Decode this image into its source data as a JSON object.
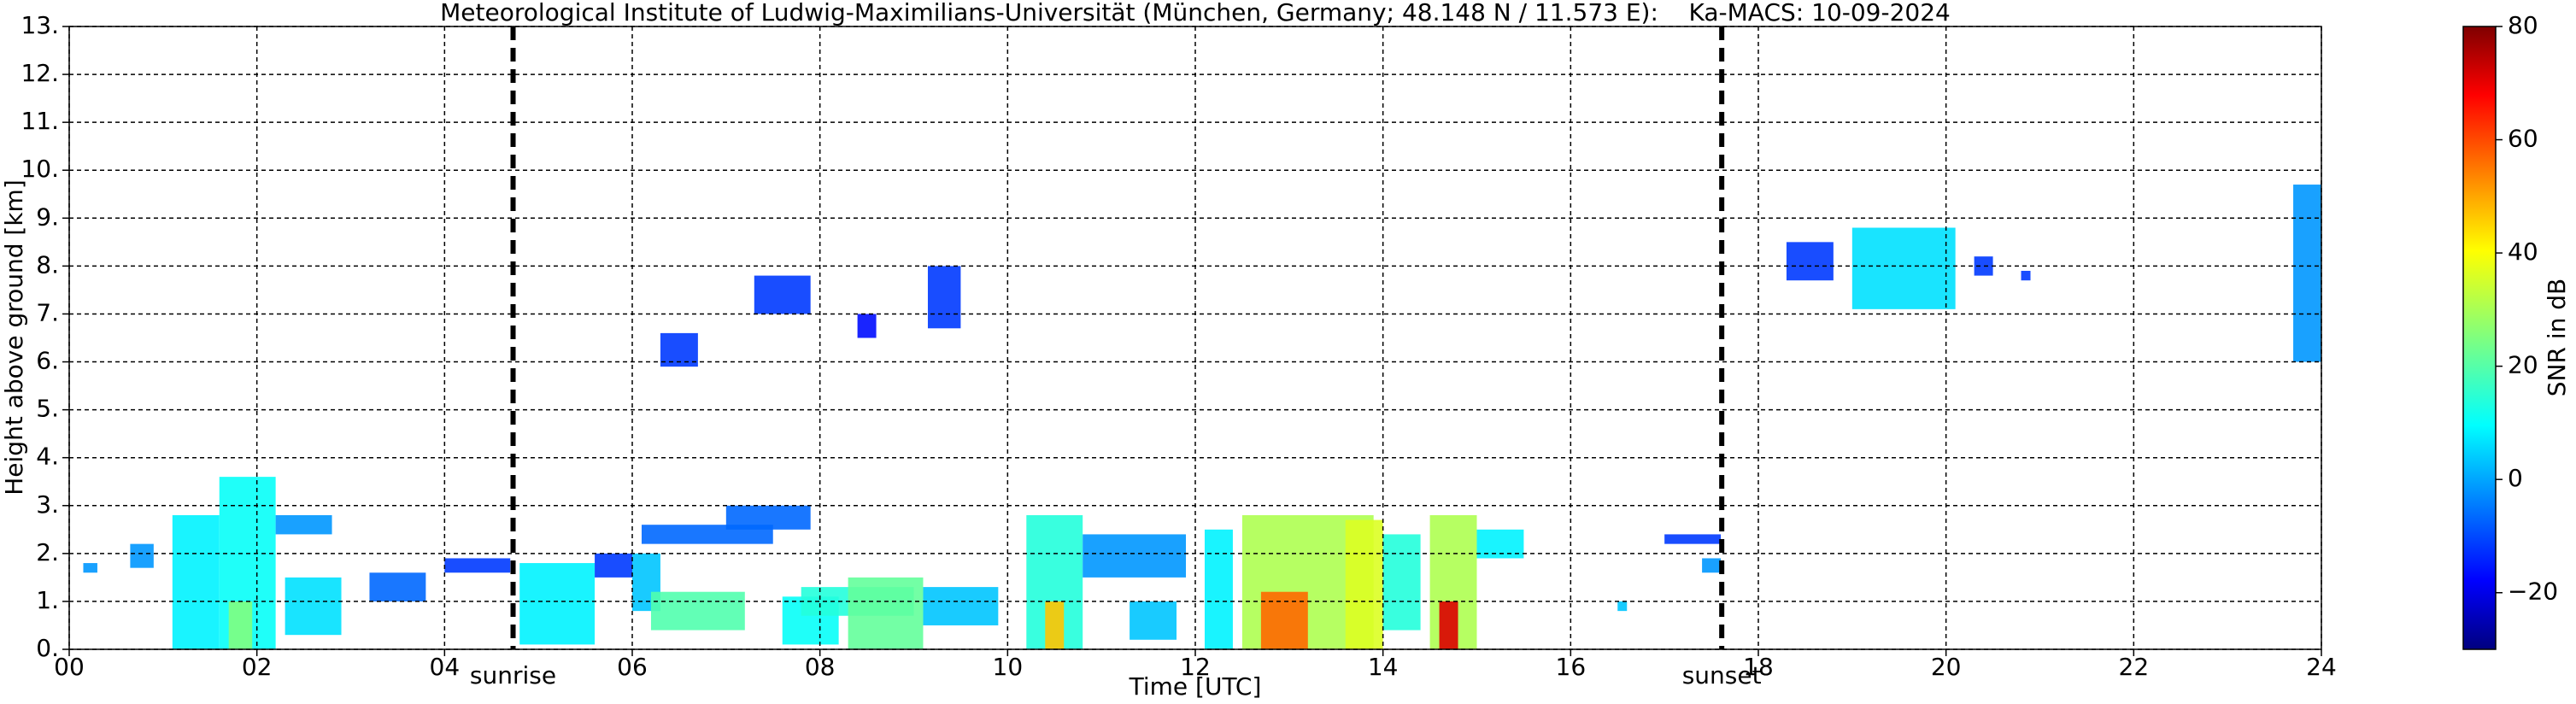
{
  "chart_data": {
    "type": "time-height",
    "title": "Meteorological Institute of Ludwig-Maximilians-Universität (München, Germany; 48.148 N / 11.573 E):    Ka-MACS: 10-09-2024",
    "x_label": "Time [UTC]",
    "y_label": "Height above ground [km]",
    "colorbar_label": "SNR in dB",
    "xlim": [
      0,
      24
    ],
    "ylim": [
      0,
      13
    ],
    "clim": [
      -30,
      80
    ],
    "colormap": "jet",
    "grid": true,
    "xticks": [
      {
        "value": 0,
        "label": "00"
      },
      {
        "value": 2,
        "label": "02"
      },
      {
        "value": 4,
        "label": "04"
      },
      {
        "value": 6,
        "label": "06"
      },
      {
        "value": 8,
        "label": "08"
      },
      10,
      12,
      14,
      16,
      18,
      20,
      22,
      24
    ],
    "yticks": [
      {
        "value": 0,
        "label": "0."
      },
      {
        "value": 1,
        "label": "1."
      },
      {
        "value": 2,
        "label": "2."
      },
      {
        "value": 3,
        "label": "3."
      },
      {
        "value": 4,
        "label": "4."
      },
      {
        "value": 5,
        "label": "5."
      },
      {
        "value": 6,
        "label": "6."
      },
      {
        "value": 7,
        "label": "7."
      },
      {
        "value": 8,
        "label": "8."
      },
      {
        "value": 9,
        "label": "9."
      },
      {
        "value": 10,
        "label": "10."
      },
      {
        "value": 11,
        "label": "11."
      },
      {
        "value": 12,
        "label": "12."
      },
      {
        "value": 13,
        "label": "13."
      }
    ],
    "cticks": [
      {
        "value": -20,
        "label": "−20"
      },
      0,
      20,
      40,
      60,
      80
    ],
    "annotations": [
      {
        "text": "sunrise",
        "x": 4.73
      },
      {
        "text": "sunset",
        "x": 17.61
      }
    ],
    "regions": [
      {
        "x": [
          0.15,
          0.3
        ],
        "y": [
          1.6,
          1.8
        ],
        "value": 0
      },
      {
        "x": [
          0.65,
          0.9
        ],
        "y": [
          1.7,
          2.2
        ],
        "value": 0
      },
      {
        "x": [
          1.1,
          1.6
        ],
        "y": [
          0,
          2.8
        ],
        "value": 10
      },
      {
        "x": [
          1.6,
          2.2
        ],
        "y": [
          0,
          3.6
        ],
        "value": 12
      },
      {
        "x": [
          1.7,
          1.95
        ],
        "y": [
          0,
          1.0
        ],
        "value": 25
      },
      {
        "x": [
          2.2,
          2.8
        ],
        "y": [
          2.4,
          2.8
        ],
        "value": 0
      },
      {
        "x": [
          2.3,
          2.9
        ],
        "y": [
          0.3,
          1.5
        ],
        "value": 8
      },
      {
        "x": [
          3.2,
          3.8
        ],
        "y": [
          1.0,
          1.6
        ],
        "value": -5
      },
      {
        "x": [
          4.0,
          4.7
        ],
        "y": [
          1.6,
          1.9
        ],
        "value": -10
      },
      {
        "x": [
          4.8,
          5.6
        ],
        "y": [
          0.1,
          1.8
        ],
        "value": 10
      },
      {
        "x": [
          5.6,
          6.0
        ],
        "y": [
          1.5,
          2.0
        ],
        "value": -10
      },
      {
        "x": [
          6.0,
          6.3
        ],
        "y": [
          0.8,
          2.0
        ],
        "value": 5
      },
      {
        "x": [
          6.1,
          7.5
        ],
        "y": [
          2.2,
          2.6
        ],
        "value": -5
      },
      {
        "x": [
          7.0,
          7.9
        ],
        "y": [
          2.5,
          3.0
        ],
        "value": -5
      },
      {
        "x": [
          6.2,
          7.2
        ],
        "y": [
          0.4,
          1.2
        ],
        "value": 20
      },
      {
        "x": [
          7.6,
          8.2
        ],
        "y": [
          0.1,
          1.1
        ],
        "value": 12
      },
      {
        "x": [
          7.8,
          9.0
        ],
        "y": [
          0.7,
          1.3
        ],
        "value": 15
      },
      {
        "x": [
          8.3,
          9.1
        ],
        "y": [
          0,
          1.5
        ],
        "value": 22
      },
      {
        "x": [
          9.1,
          9.9
        ],
        "y": [
          0.5,
          1.3
        ],
        "value": 5
      },
      {
        "x": [
          6.3,
          6.7
        ],
        "y": [
          5.9,
          6.6
        ],
        "value": -10
      },
      {
        "x": [
          7.3,
          7.9
        ],
        "y": [
          7.0,
          7.8
        ],
        "value": -10
      },
      {
        "x": [
          8.4,
          8.6
        ],
        "y": [
          6.5,
          7.0
        ],
        "value": -15
      },
      {
        "x": [
          9.15,
          9.5
        ],
        "y": [
          6.7,
          8.0
        ],
        "value": -10
      },
      {
        "x": [
          10.2,
          10.8
        ],
        "y": [
          0,
          2.8
        ],
        "value": 15
      },
      {
        "x": [
          10.4,
          10.6
        ],
        "y": [
          0,
          1.0
        ],
        "value": 45
      },
      {
        "x": [
          10.8,
          11.9
        ],
        "y": [
          1.5,
          2.4
        ],
        "value": 0
      },
      {
        "x": [
          11.3,
          11.8
        ],
        "y": [
          0.2,
          1.0
        ],
        "value": 5
      },
      {
        "x": [
          12.1,
          12.4
        ],
        "y": [
          0,
          2.5
        ],
        "value": 10
      },
      {
        "x": [
          12.5,
          13.9
        ],
        "y": [
          0,
          2.8
        ],
        "value": 30
      },
      {
        "x": [
          12.7,
          13.2
        ],
        "y": [
          0,
          1.2
        ],
        "value": 55
      },
      {
        "x": [
          13.6,
          14.0
        ],
        "y": [
          0,
          2.7
        ],
        "value": 35
      },
      {
        "x": [
          14.0,
          14.4
        ],
        "y": [
          0.4,
          2.4
        ],
        "value": 15
      },
      {
        "x": [
          14.5,
          15.0
        ],
        "y": [
          0,
          2.8
        ],
        "value": 30
      },
      {
        "x": [
          14.6,
          14.8
        ],
        "y": [
          0,
          1.0
        ],
        "value": 70
      },
      {
        "x": [
          15.0,
          15.5
        ],
        "y": [
          1.9,
          2.5
        ],
        "value": 10
      },
      {
        "x": [
          16.5,
          16.6
        ],
        "y": [
          0.8,
          1.0
        ],
        "value": 5
      },
      {
        "x": [
          17.0,
          17.6
        ],
        "y": [
          2.2,
          2.4
        ],
        "value": -10
      },
      {
        "x": [
          17.4,
          17.6
        ],
        "y": [
          1.6,
          1.9
        ],
        "value": 0
      },
      {
        "x": [
          18.3,
          18.8
        ],
        "y": [
          7.7,
          8.5
        ],
        "value": -10
      },
      {
        "x": [
          19.0,
          20.1
        ],
        "y": [
          7.1,
          8.8
        ],
        "value": 8
      },
      {
        "x": [
          20.3,
          20.5
        ],
        "y": [
          7.8,
          8.2
        ],
        "value": -10
      },
      {
        "x": [
          20.8,
          20.9
        ],
        "y": [
          7.7,
          7.9
        ],
        "value": -10
      },
      {
        "x": [
          23.7,
          24.0
        ],
        "y": [
          6.0,
          9.7
        ],
        "value": 0
      }
    ]
  }
}
